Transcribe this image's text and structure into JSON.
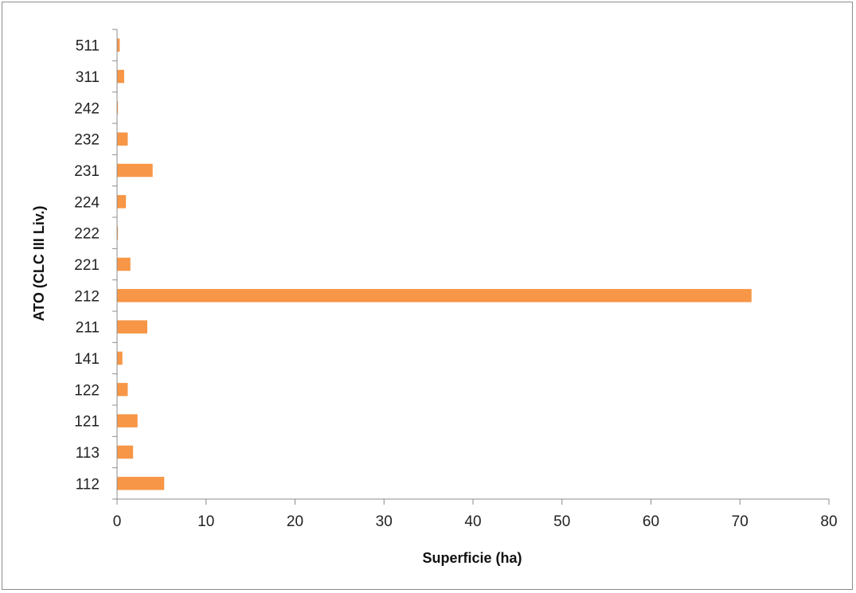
{
  "chart_data": {
    "type": "bar",
    "orientation": "horizontal",
    "categories": [
      "112",
      "113",
      "121",
      "122",
      "141",
      "211",
      "212",
      "221",
      "222",
      "224",
      "231",
      "232",
      "242",
      "311",
      "511"
    ],
    "values": [
      5.3,
      1.8,
      2.3,
      1.2,
      0.6,
      3.4,
      71.3,
      1.5,
      0.1,
      1.0,
      4.0,
      1.2,
      0.1,
      0.8,
      0.3
    ],
    "xlabel": "Superficie (ha)",
    "ylabel": "ATO (CLC III Liv.)",
    "xlim": [
      0,
      80
    ],
    "xticks": [
      "0",
      "10",
      "20",
      "30",
      "40",
      "50",
      "60",
      "70",
      "80"
    ],
    "grid": false,
    "legend": "none",
    "bar_color": "#F79646"
  }
}
